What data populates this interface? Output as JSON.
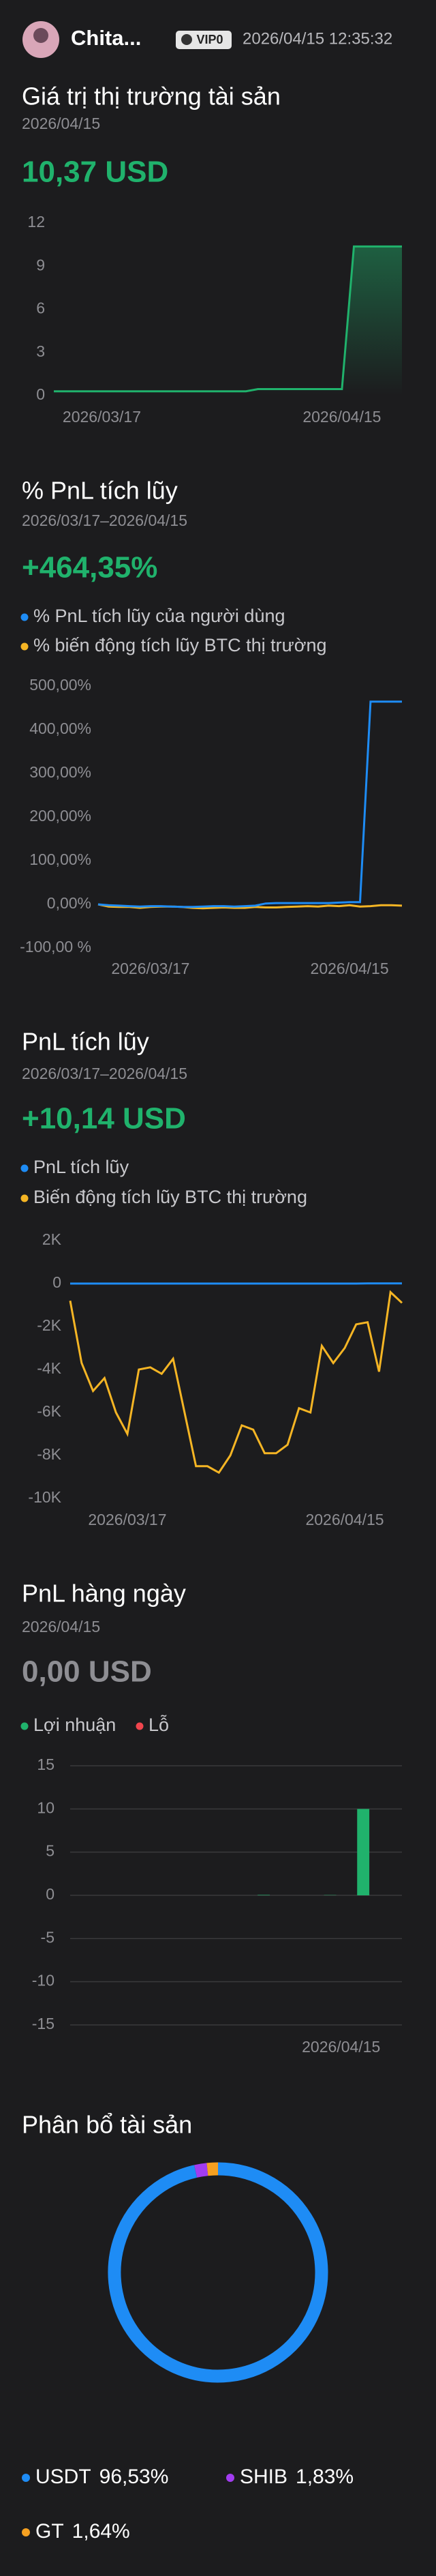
{
  "header": {
    "name": "Chita...",
    "badge": "VIP0",
    "datetime": "2026/04/15 12:35:32"
  },
  "chart_data": [
    {
      "type": "area",
      "title": "Giá trị thị trường tài sản",
      "subtitle": "2026/04/15",
      "headline": "10,37 USD",
      "headline_color": "#20b26c",
      "categories": [
        null,
        null,
        null,
        null,
        "2026/03/17",
        null,
        null,
        null,
        null,
        null,
        null,
        null,
        null,
        null,
        null,
        null,
        null,
        null,
        null,
        null,
        null,
        null,
        null,
        null,
        "2026/04/15",
        null,
        null,
        null,
        null,
        null
      ],
      "values": [
        0.3,
        0.3,
        0.3,
        0.3,
        0.3,
        0.3,
        0.3,
        0.3,
        0.3,
        0.3,
        0.3,
        0.3,
        0.3,
        0.3,
        0.3,
        0.3,
        0.3,
        0.45,
        0.45,
        0.45,
        0.45,
        0.45,
        0.45,
        0.45,
        0.45,
        10.37,
        10.37,
        10.37,
        10.37,
        10.37
      ],
      "color": "#20b26c",
      "ylim": [
        0,
        12
      ],
      "yticks": [
        0,
        3,
        6,
        9,
        12
      ],
      "grid": false
    },
    {
      "type": "line",
      "title": "% PnL tích lũy",
      "subtitle": "2026/03/17–2026/04/15",
      "headline": "+464,35%",
      "headline_color": "#20b26c",
      "categories": [
        null,
        null,
        null,
        null,
        null,
        "2026/03/17",
        null,
        null,
        null,
        null,
        null,
        null,
        null,
        null,
        null,
        null,
        null,
        null,
        null,
        null,
        null,
        null,
        null,
        null,
        "2026/04/15",
        null,
        null,
        null,
        null,
        null
      ],
      "series": [
        {
          "name": "% PnL tích lũy của người dùng",
          "color": "#1e8cf5",
          "values": [
            0,
            -2,
            -3,
            -4,
            -5,
            -4,
            -4,
            -5,
            -6,
            -6,
            -5,
            -4,
            -4,
            -5,
            -4,
            -3,
            2,
            3,
            3,
            3,
            3,
            3,
            3,
            4,
            5,
            5,
            464.35,
            464.35,
            464.35,
            464.35
          ]
        },
        {
          "name": "% biến động tích lũy BTC thị trường",
          "color": "#f5b524",
          "values": [
            0,
            -5,
            -6,
            -6,
            -8,
            -6,
            -5,
            -5,
            -6,
            -8,
            -9,
            -8,
            -7,
            -8,
            -8,
            -6,
            -7,
            -7,
            -6,
            -5,
            -4,
            -5,
            -3,
            -4,
            -2,
            -5,
            -4,
            -2,
            -2,
            -3
          ]
        }
      ],
      "ylim": [
        -100,
        500
      ],
      "yticks": [
        {
          "value": -100,
          "label": "-100,00 %"
        },
        {
          "value": 0,
          "label": "0,00%"
        },
        {
          "value": 100,
          "label": "100,00%"
        },
        {
          "value": 200,
          "label": "200,00%"
        },
        {
          "value": 300,
          "label": "300,00%"
        },
        {
          "value": 400,
          "label": "400,00%"
        },
        {
          "value": 500,
          "label": "500,00%"
        }
      ],
      "grid": false
    },
    {
      "type": "line",
      "title": "PnL tích lũy",
      "subtitle": "2026/03/17–2026/04/15",
      "headline": "+10,14 USD",
      "headline_color": "#20b26c",
      "categories": [
        null,
        null,
        null,
        null,
        null,
        "2026/03/17",
        null,
        null,
        null,
        null,
        null,
        null,
        null,
        null,
        null,
        null,
        null,
        null,
        null,
        null,
        null,
        null,
        null,
        null,
        "2026/04/15",
        null,
        null,
        null,
        null,
        null
      ],
      "series": [
        {
          "name": "PnL tích lũy",
          "color": "#1e8cf5",
          "values": [
            0,
            0,
            0,
            0,
            0,
            0,
            0,
            0,
            0,
            0,
            0,
            0,
            0,
            0,
            0,
            0,
            0,
            0,
            0,
            0,
            0,
            0,
            0,
            0,
            0,
            0,
            10.14,
            10.14,
            10.14,
            10.14
          ]
        },
        {
          "name": "Biến động tích lũy BTC thị trường",
          "color": "#f5b524",
          "values": [
            -800,
            -3700,
            -5000,
            -4400,
            -6000,
            -7000,
            -4000,
            -3900,
            -4200,
            -3500,
            -6000,
            -8500,
            -8500,
            -8800,
            -8000,
            -6600,
            -6800,
            -7900,
            -7900,
            -7500,
            -5800,
            -6000,
            -2900,
            -3700,
            -3000,
            -1900,
            -1800,
            -4100,
            -400,
            -900
          ]
        }
      ],
      "ylim": [
        -10000,
        2000
      ],
      "yticks": [
        {
          "value": -10000,
          "label": "-10K"
        },
        {
          "value": -8000,
          "label": "-8K"
        },
        {
          "value": -6000,
          "label": "-6K"
        },
        {
          "value": -4000,
          "label": "-4K"
        },
        {
          "value": -2000,
          "label": "-2K"
        },
        0,
        {
          "value": 2000,
          "label": "2K"
        }
      ],
      "grid": false
    },
    {
      "type": "bar",
      "title": "PnL hàng ngày",
      "subtitle": "2026/04/15",
      "headline": "0,00 USD",
      "headline_color": "#8e8e93",
      "legend": [
        {
          "name": "Lợi nhuận",
          "color": "#20b26c"
        },
        {
          "name": "Lỗ",
          "color": "#f0454d"
        }
      ],
      "categories": [
        null,
        null,
        null,
        null,
        null,
        null,
        null,
        null,
        null,
        null,
        null,
        null,
        null,
        null,
        null,
        null,
        null,
        null,
        null,
        null,
        null,
        null,
        null,
        null,
        "2026/04/15",
        null,
        null,
        null,
        null,
        null
      ],
      "values": [
        0,
        0,
        0,
        0,
        0,
        0,
        0,
        0,
        0,
        0,
        0,
        0,
        0,
        0,
        0,
        0,
        0,
        0.05,
        0,
        0,
        0,
        0,
        0,
        0.03,
        0,
        0,
        10,
        0,
        0,
        0
      ],
      "ylim": [
        -15,
        15
      ],
      "yticks": [
        -15,
        -10,
        -5,
        0,
        5,
        10,
        15
      ],
      "grid": true
    },
    {
      "type": "donut",
      "title": "Phân bổ tài sản",
      "categories": [
        "USDT",
        "SHIB",
        "GT"
      ],
      "values": [
        96.53,
        1.83,
        1.64
      ],
      "value_labels": [
        "96,53%",
        "1,83%",
        "1,64%"
      ],
      "colors": [
        "#1e8cf5",
        "#a23cf0",
        "#f5a021"
      ]
    }
  ]
}
